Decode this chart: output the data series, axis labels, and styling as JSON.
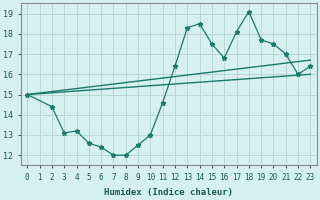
{
  "xlabel": "Humidex (Indice chaleur)",
  "ylabel": "",
  "xlim": [
    -0.5,
    23.5
  ],
  "ylim": [
    11.5,
    19.5
  ],
  "xticks": [
    0,
    1,
    2,
    3,
    4,
    5,
    6,
    7,
    8,
    9,
    10,
    11,
    12,
    13,
    14,
    15,
    16,
    17,
    18,
    19,
    20,
    21,
    22,
    23
  ],
  "yticks": [
    12,
    13,
    14,
    15,
    16,
    17,
    18,
    19
  ],
  "bg_color": "#d6f0ef",
  "line_color": "#1a7a6e",
  "grid_color": "#b8d8d5",
  "series1_x": [
    0,
    2,
    3,
    4,
    5,
    6,
    7,
    8,
    9,
    10,
    11,
    12,
    13,
    14,
    15,
    16,
    17,
    18,
    19,
    20,
    21,
    22,
    23
  ],
  "series1_y": [
    15.0,
    14.4,
    13.1,
    13.2,
    12.6,
    12.4,
    12.0,
    12.0,
    12.5,
    13.0,
    14.6,
    16.4,
    18.3,
    18.5,
    17.5,
    16.8,
    18.1,
    19.1,
    17.7,
    17.5,
    17.0,
    16.0,
    16.4
  ],
  "series2_x": [
    0,
    23
  ],
  "series2_y": [
    15.0,
    16.0
  ],
  "series3_x": [
    0,
    23
  ],
  "series3_y": [
    15.0,
    16.7
  ]
}
